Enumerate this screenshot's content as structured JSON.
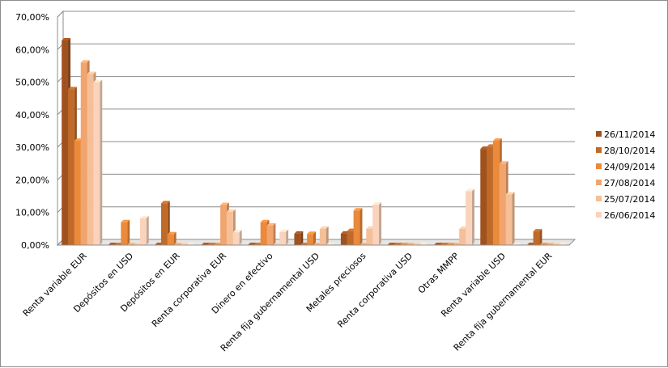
{
  "chart_data": {
    "type": "bar",
    "categories": [
      "Renta variable EUR",
      "Depósitos en USD",
      "Depósitos en EUR",
      "Renta corporativa EUR",
      "Dinero en efectivo",
      "Renta fija gubernamental USD",
      "Metales preciosos",
      "Renta corporativa USD",
      "Otras MMPP",
      "Renta variable USD",
      "Renta fija gubernamental EUR"
    ],
    "series": [
      {
        "name": "26/11/2014",
        "color": "#a0521e",
        "values": [
          62.8,
          0.0,
          0.0,
          0.0,
          0.0,
          3.5,
          3.5,
          0.0,
          0.0,
          29.5,
          0.0
        ]
      },
      {
        "name": "28/10/2014",
        "color": "#c06a2a",
        "values": [
          47.8,
          0.0,
          12.8,
          0.0,
          0.0,
          0.0,
          4.3,
          0.0,
          0.0,
          30.2,
          4.2
        ]
      },
      {
        "name": "24/09/2014",
        "color": "#ea8a3a",
        "values": [
          32.0,
          7.0,
          3.3,
          0.0,
          7.0,
          3.4,
          10.6,
          0.0,
          0.0,
          32.0,
          0.0
        ]
      },
      {
        "name": "27/08/2014",
        "color": "#f2a46e",
        "values": [
          56.0,
          0.0,
          0.0,
          12.3,
          6.0,
          0.0,
          0.0,
          0.0,
          0.0,
          25.0,
          0.0
        ]
      },
      {
        "name": "25/07/2014",
        "color": "#f5bf98",
        "values": [
          52.5,
          0.0,
          0.0,
          10.2,
          0.0,
          5.0,
          5.0,
          0.0,
          5.0,
          15.5,
          0.0
        ]
      },
      {
        "name": "26/06/2014",
        "color": "#fad3bd",
        "values": [
          50.0,
          8.2,
          0.0,
          3.9,
          4.0,
          0.0,
          12.4,
          0.0,
          16.5,
          0.0,
          0.0
        ]
      }
    ],
    "yticks": [
      "0,00%",
      "10,00%",
      "20,00%",
      "30,00%",
      "40,00%",
      "50,00%",
      "60,00%",
      "70,00%"
    ],
    "ylim": [
      0,
      70
    ],
    "ystep": 10,
    "grid": true,
    "legend": "right"
  }
}
